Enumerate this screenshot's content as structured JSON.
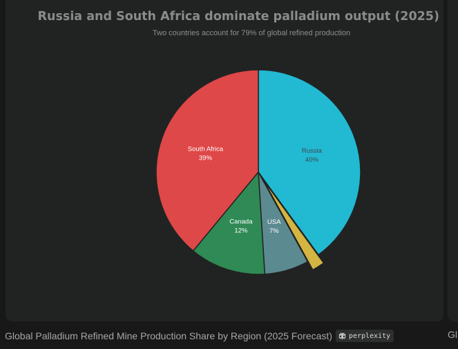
{
  "chart_data": {
    "type": "pie",
    "title": "Russia and South Africa dominate palladium output (2025)",
    "subtitle": "Two countries account for 79% of global refined production",
    "slices": [
      {
        "label": "Russia",
        "value": 40,
        "value_label": "40%",
        "color": "#22b9d3",
        "label_color": "#3f4a4e",
        "exploded": false
      },
      {
        "label": "",
        "value": 2,
        "value_label": "",
        "color": "#d4b542",
        "label_color": "#3f4a4e",
        "exploded": true
      },
      {
        "label": "USA",
        "value": 7,
        "value_label": "7%",
        "color": "#5c8a91",
        "label_color": "#ffffff",
        "exploded": false
      },
      {
        "label": "Canada",
        "value": 12,
        "value_label": "12%",
        "color": "#2f8a55",
        "label_color": "#ffffff",
        "exploded": false
      },
      {
        "label": "South Africa",
        "value": 39,
        "value_label": "39%",
        "color": "#de4848",
        "label_color": "#ffffff",
        "exploded": false
      }
    ],
    "start_angle_deg": 0,
    "direction": "clockwise"
  },
  "caption": "Global Palladium Refined Mine Production Share by Region (2025 Forecast)",
  "brand": {
    "name": "perplexity",
    "icon": "perplexity-logo-icon"
  },
  "next_caption": "Gl",
  "colors": {
    "background": "#171817",
    "card": "#212322",
    "title": "#8a8c8b"
  }
}
